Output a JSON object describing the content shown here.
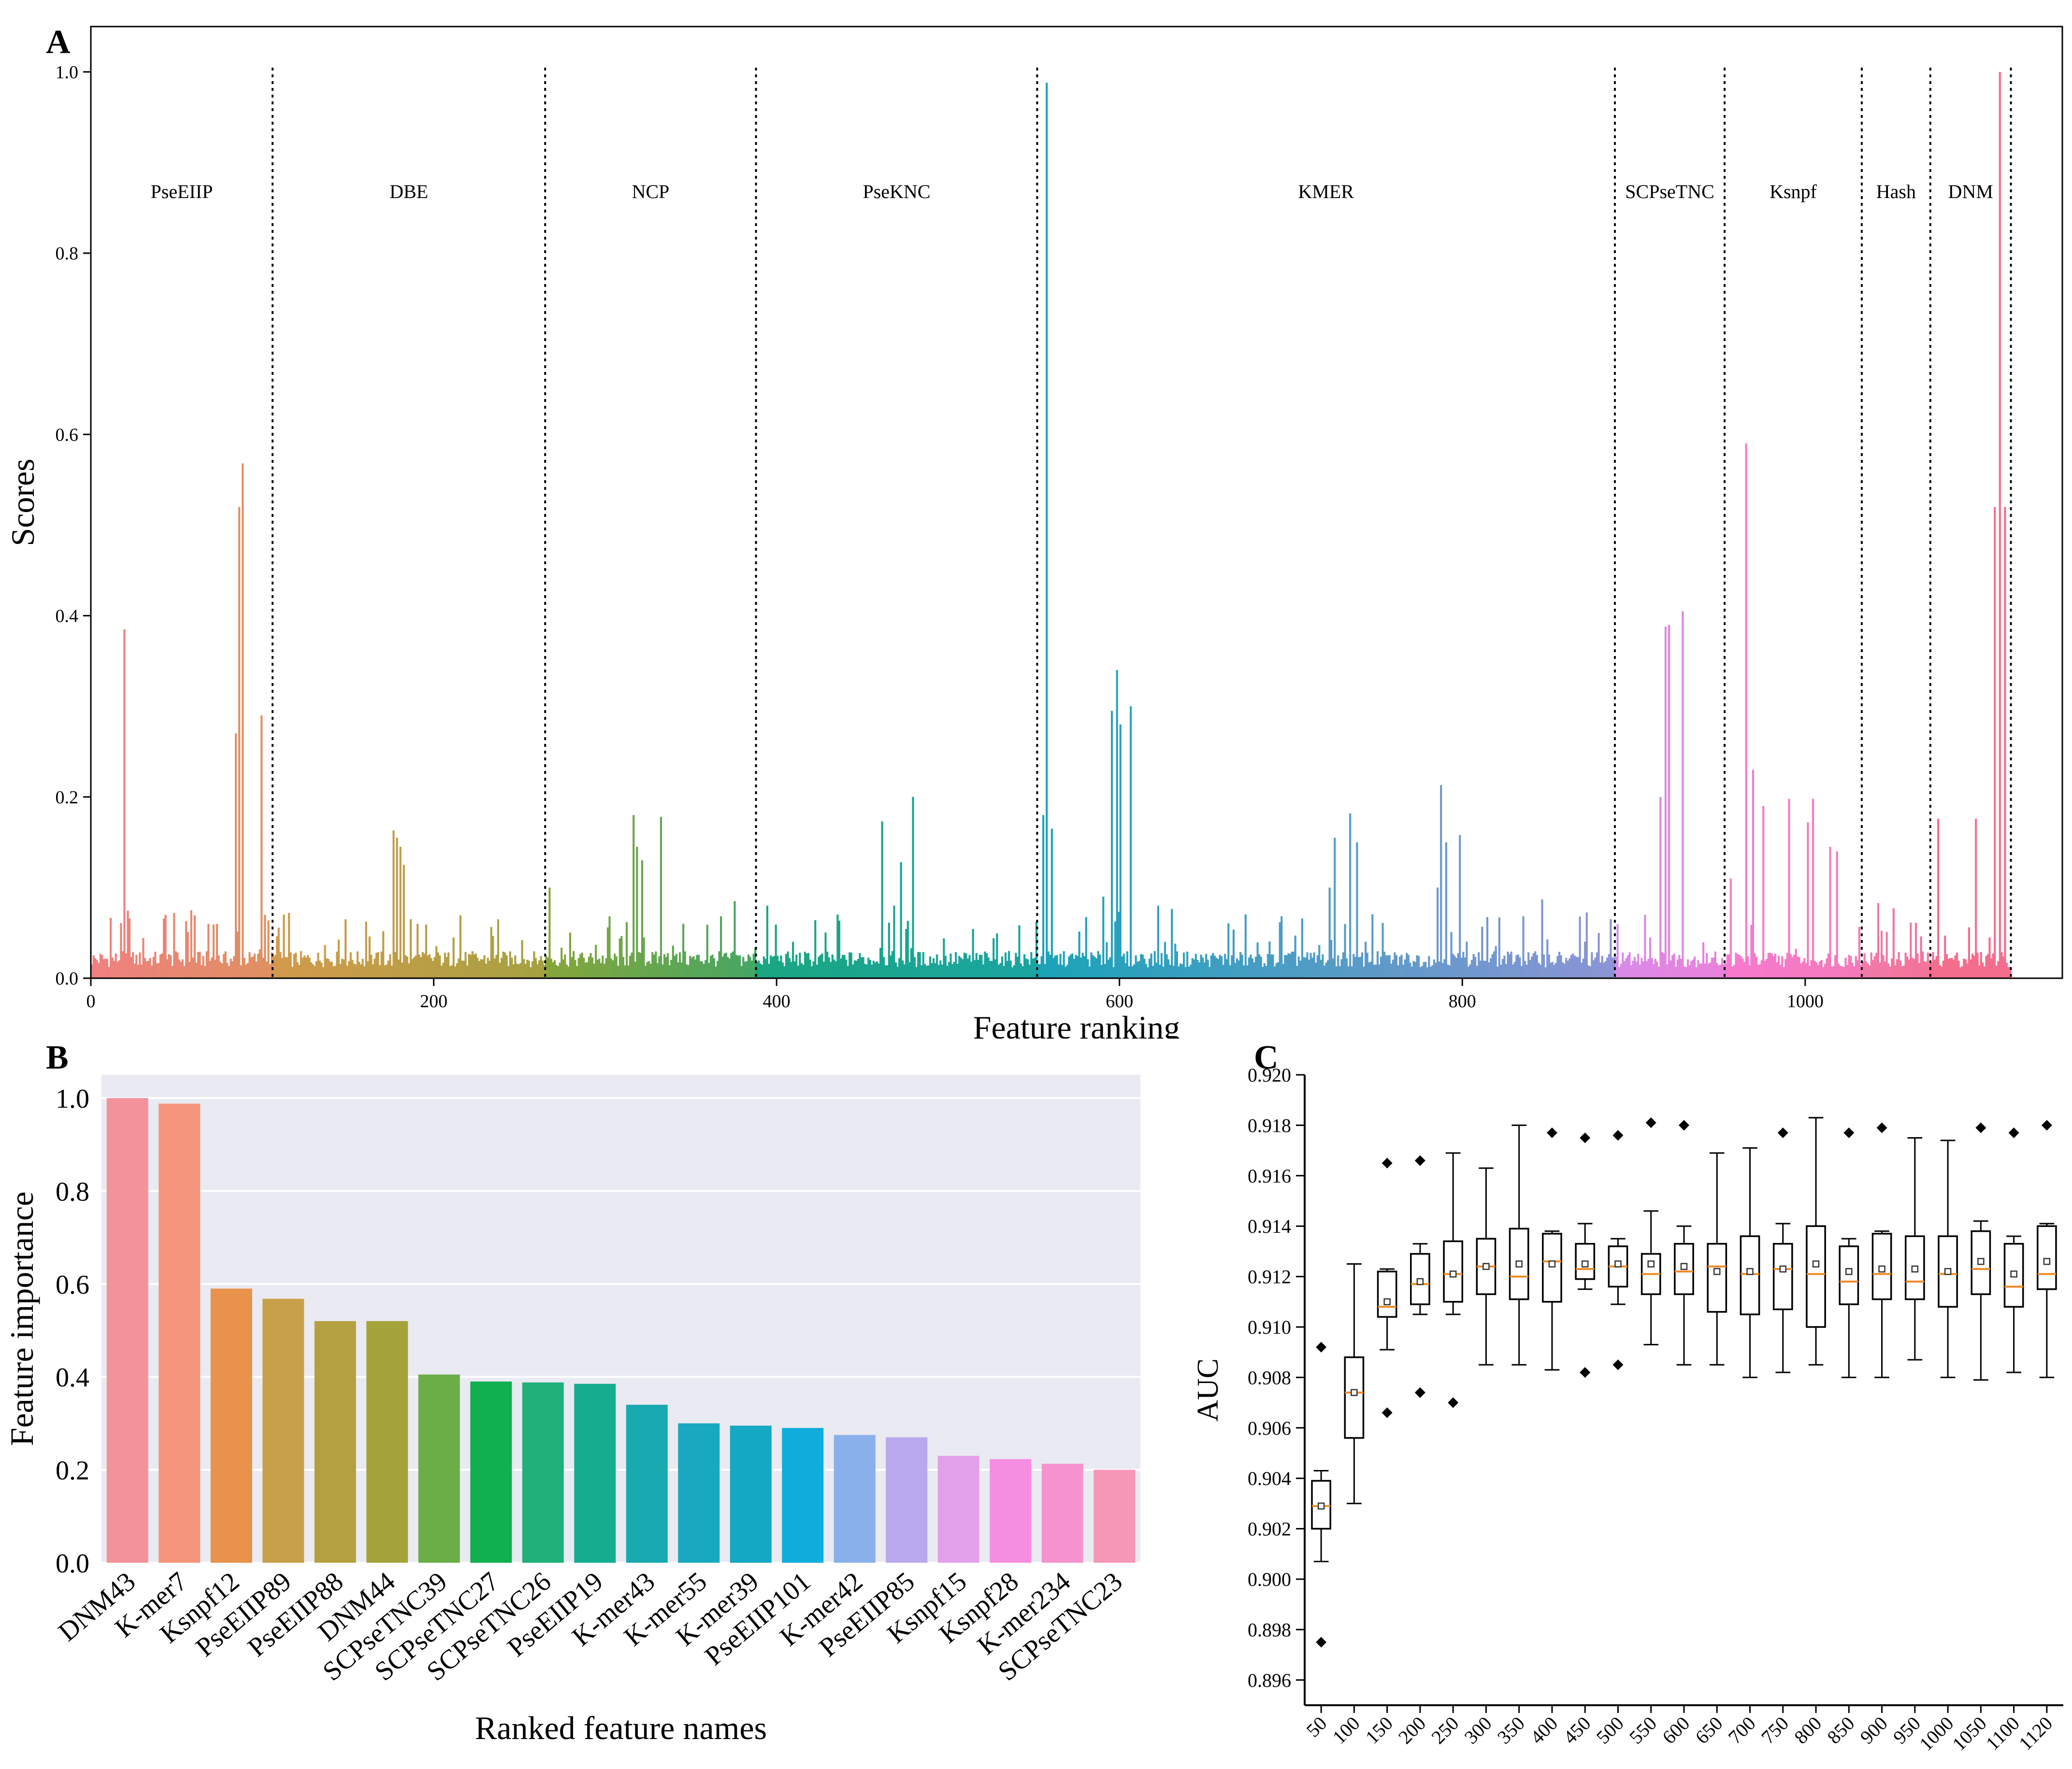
{
  "chart_data": [
    {
      "panel": "A",
      "type": "bar",
      "xlabel": "Feature ranking",
      "ylabel": "Scores",
      "xlim": [
        0,
        1150
      ],
      "ylim": [
        0,
        1.05
      ],
      "xticks": [
        0,
        200,
        400,
        600,
        800,
        1000
      ],
      "xtick_labels": [
        "0",
        "200",
        "400",
        "600",
        "800",
        "1000"
      ],
      "yticks": [
        0.0,
        0.2,
        0.4,
        0.6,
        0.8,
        1.0
      ],
      "ytick_labels": [
        "0.0",
        "0.2",
        "0.4",
        "0.6",
        "0.8",
        "1.0"
      ],
      "groups": [
        {
          "name": "PseEIIP",
          "start": 0,
          "end": 106,
          "color": "#f08080"
        },
        {
          "name": "DBE",
          "start": 106,
          "end": 265,
          "color": "#d39a4c"
        },
        {
          "name": "NCP",
          "start": 265,
          "end": 388,
          "color": "#86a63a"
        },
        {
          "name": "PseKNC",
          "start": 388,
          "end": 552,
          "color": "#1aa680"
        },
        {
          "name": "KMER",
          "start": 552,
          "end": 889,
          "color": "#1aa3b8"
        },
        {
          "name": "SCPseTNC",
          "start": 889,
          "end": 953,
          "color": "#d98ae8"
        },
        {
          "name": "Ksnpf",
          "start": 953,
          "end": 1033,
          "color": "#f57ad0"
        },
        {
          "name": "Hash",
          "start": 1033,
          "end": 1073,
          "color": "#f27aa8"
        },
        {
          "name": "DNM",
          "start": 1073,
          "end": 1120,
          "color": "#f46d8d"
        }
      ],
      "peaks": [
        {
          "x": 19,
          "y": 0.385
        },
        {
          "x": 22,
          "y": 0.066
        },
        {
          "x": 43,
          "y": 0.07
        },
        {
          "x": 48,
          "y": 0.072
        },
        {
          "x": 58,
          "y": 0.075
        },
        {
          "x": 68,
          "y": 0.06
        },
        {
          "x": 73,
          "y": 0.06
        },
        {
          "x": 84,
          "y": 0.27
        },
        {
          "x": 86,
          "y": 0.52
        },
        {
          "x": 88,
          "y": 0.568
        },
        {
          "x": 99,
          "y": 0.29
        },
        {
          "x": 101,
          "y": 0.07
        },
        {
          "x": 176,
          "y": 0.163
        },
        {
          "x": 178,
          "y": 0.155
        },
        {
          "x": 180,
          "y": 0.145
        },
        {
          "x": 182,
          "y": 0.125
        },
        {
          "x": 190,
          "y": 0.06
        },
        {
          "x": 267,
          "y": 0.1
        },
        {
          "x": 316,
          "y": 0.18
        },
        {
          "x": 318,
          "y": 0.145
        },
        {
          "x": 321,
          "y": 0.13
        },
        {
          "x": 332,
          "y": 0.178
        },
        {
          "x": 345,
          "y": 0.06
        },
        {
          "x": 375,
          "y": 0.085
        },
        {
          "x": 394,
          "y": 0.08
        },
        {
          "x": 461,
          "y": 0.173
        },
        {
          "x": 468,
          "y": 0.08
        },
        {
          "x": 472,
          "y": 0.128
        },
        {
          "x": 479,
          "y": 0.2
        },
        {
          "x": 555,
          "y": 0.18
        },
        {
          "x": 557,
          "y": 0.988
        },
        {
          "x": 560,
          "y": 0.165
        },
        {
          "x": 590,
          "y": 0.09
        },
        {
          "x": 595,
          "y": 0.295
        },
        {
          "x": 598,
          "y": 0.34
        },
        {
          "x": 600,
          "y": 0.28
        },
        {
          "x": 606,
          "y": 0.3
        },
        {
          "x": 622,
          "y": 0.08
        },
        {
          "x": 722,
          "y": 0.1
        },
        {
          "x": 725,
          "y": 0.155
        },
        {
          "x": 734,
          "y": 0.182
        },
        {
          "x": 738,
          "y": 0.15
        },
        {
          "x": 785,
          "y": 0.1
        },
        {
          "x": 787,
          "y": 0.213
        },
        {
          "x": 790,
          "y": 0.15
        },
        {
          "x": 798,
          "y": 0.158
        },
        {
          "x": 846,
          "y": 0.087
        },
        {
          "x": 906,
          "y": 0.07
        },
        {
          "x": 915,
          "y": 0.2
        },
        {
          "x": 918,
          "y": 0.388
        },
        {
          "x": 920,
          "y": 0.39
        },
        {
          "x": 928,
          "y": 0.405
        },
        {
          "x": 956,
          "y": 0.11
        },
        {
          "x": 965,
          "y": 0.59
        },
        {
          "x": 969,
          "y": 0.23
        },
        {
          "x": 975,
          "y": 0.19
        },
        {
          "x": 990,
          "y": 0.198
        },
        {
          "x": 1001,
          "y": 0.172
        },
        {
          "x": 1004,
          "y": 0.198
        },
        {
          "x": 1014,
          "y": 0.145
        },
        {
          "x": 1018,
          "y": 0.14
        },
        {
          "x": 1042,
          "y": 0.083
        },
        {
          "x": 1077,
          "y": 0.176
        },
        {
          "x": 1099,
          "y": 0.176
        },
        {
          "x": 1110,
          "y": 0.52
        },
        {
          "x": 1113,
          "y": 1.0
        },
        {
          "x": 1116,
          "y": 0.52
        }
      ]
    },
    {
      "panel": "B",
      "type": "bar",
      "xlabel": "Ranked feature names",
      "ylabel": "Feature importance",
      "ylim": [
        0,
        1.05
      ],
      "yticks": [
        0.0,
        0.2,
        0.4,
        0.6,
        0.8,
        1.0
      ],
      "ytick_labels": [
        "0.0",
        "0.2",
        "0.4",
        "0.6",
        "0.8",
        "1.0"
      ],
      "categories": [
        "DNM43",
        "K-mer7",
        "Ksnpf12",
        "PseEIIP89",
        "PseEIIP88",
        "DNM44",
        "SCPseTNC39",
        "SCPseTNC27",
        "SCPseTNC26",
        "PseEIIP19",
        "K-mer43",
        "K-mer55",
        "K-mer39",
        "PseEIIP101",
        "K-mer42",
        "PseEIIP85",
        "Ksnpf15",
        "Ksnpf28",
        "K-mer234",
        "SCPseTNC23"
      ],
      "values": [
        1.0,
        0.988,
        0.59,
        0.568,
        0.52,
        0.52,
        0.405,
        0.39,
        0.388,
        0.385,
        0.34,
        0.3,
        0.295,
        0.29,
        0.275,
        0.27,
        0.23,
        0.223,
        0.213,
        0.2
      ],
      "colors": [
        "#f4929c",
        "#f4967c",
        "#e8924c",
        "#c9a04a",
        "#b4a040",
        "#a4a43a",
        "#6aae48",
        "#10b050",
        "#20b07a",
        "#14ad8f",
        "#18aab0",
        "#18a8c0",
        "#14a8c4",
        "#10acdc",
        "#8ab0ec",
        "#baa8ec",
        "#e2a0ea",
        "#f58ee0",
        "#f693cf",
        "#f797b8"
      ],
      "plot_background": "#eaeaf2"
    },
    {
      "panel": "C",
      "type": "box",
      "ylabel": "AUC",
      "ylim": [
        0.895,
        0.92
      ],
      "yticks": [
        0.896,
        0.898,
        0.9,
        0.902,
        0.904,
        0.906,
        0.908,
        0.91,
        0.912,
        0.914,
        0.916,
        0.918,
        0.92
      ],
      "ytick_labels": [
        "0.896",
        "0.898",
        "0.900",
        "0.902",
        "0.904",
        "0.906",
        "0.908",
        "0.910",
        "0.912",
        "0.914",
        "0.916",
        "0.918",
        "0.920"
      ],
      "categories": [
        "50",
        "100",
        "150",
        "200",
        "250",
        "300",
        "350",
        "400",
        "450",
        "500",
        "550",
        "600",
        "650",
        "700",
        "750",
        "800",
        "850",
        "900",
        "950",
        "1000",
        "1050",
        "1100",
        "1120"
      ],
      "boxes": [
        {
          "q1": 0.902,
          "median": 0.9029,
          "q3": 0.9039,
          "wlo": 0.9007,
          "whi": 0.9043,
          "mean": 0.9029,
          "fliers": [
            0.9092,
            0.8975
          ]
        },
        {
          "q1": 0.9056,
          "median": 0.9074,
          "q3": 0.9088,
          "wlo": 0.903,
          "whi": 0.9125,
          "mean": 0.9074,
          "fliers": []
        },
        {
          "q1": 0.9104,
          "median": 0.9108,
          "q3": 0.9122,
          "wlo": 0.9091,
          "whi": 0.9123,
          "mean": 0.911,
          "fliers": [
            0.9165,
            0.9066
          ]
        },
        {
          "q1": 0.9109,
          "median": 0.9117,
          "q3": 0.9129,
          "wlo": 0.9105,
          "whi": 0.9133,
          "mean": 0.9118,
          "fliers": [
            0.9166,
            0.9074
          ]
        },
        {
          "q1": 0.911,
          "median": 0.9121,
          "q3": 0.9134,
          "wlo": 0.9105,
          "whi": 0.9169,
          "mean": 0.9121,
          "fliers": [
            0.907
          ]
        },
        {
          "q1": 0.9113,
          "median": 0.9124,
          "q3": 0.9135,
          "wlo": 0.9085,
          "whi": 0.9163,
          "mean": 0.9124,
          "fliers": []
        },
        {
          "q1": 0.9111,
          "median": 0.912,
          "q3": 0.9139,
          "wlo": 0.9085,
          "whi": 0.918,
          "mean": 0.9125,
          "fliers": []
        },
        {
          "q1": 0.911,
          "median": 0.9126,
          "q3": 0.9137,
          "wlo": 0.9083,
          "whi": 0.9138,
          "mean": 0.9125,
          "fliers": [
            0.9177
          ]
        },
        {
          "q1": 0.9119,
          "median": 0.9123,
          "q3": 0.9133,
          "wlo": 0.9115,
          "whi": 0.9141,
          "mean": 0.9125,
          "fliers": [
            0.9175,
            0.9082
          ]
        },
        {
          "q1": 0.9116,
          "median": 0.9124,
          "q3": 0.9132,
          "wlo": 0.9109,
          "whi": 0.9135,
          "mean": 0.9125,
          "fliers": [
            0.9176,
            0.9085
          ]
        },
        {
          "q1": 0.9113,
          "median": 0.9121,
          "q3": 0.9129,
          "wlo": 0.9093,
          "whi": 0.9146,
          "mean": 0.9125,
          "fliers": [
            0.9181
          ]
        },
        {
          "q1": 0.9113,
          "median": 0.9122,
          "q3": 0.9133,
          "wlo": 0.9085,
          "whi": 0.914,
          "mean": 0.9124,
          "fliers": [
            0.918
          ]
        },
        {
          "q1": 0.9106,
          "median": 0.9124,
          "q3": 0.9133,
          "wlo": 0.9085,
          "whi": 0.9169,
          "mean": 0.9122,
          "fliers": []
        },
        {
          "q1": 0.9105,
          "median": 0.9121,
          "q3": 0.9136,
          "wlo": 0.908,
          "whi": 0.9171,
          "mean": 0.9122,
          "fliers": []
        },
        {
          "q1": 0.9107,
          "median": 0.9123,
          "q3": 0.9133,
          "wlo": 0.9082,
          "whi": 0.9141,
          "mean": 0.9123,
          "fliers": [
            0.9177
          ]
        },
        {
          "q1": 0.91,
          "median": 0.9121,
          "q3": 0.914,
          "wlo": 0.9085,
          "whi": 0.9183,
          "mean": 0.9125,
          "fliers": []
        },
        {
          "q1": 0.9109,
          "median": 0.9118,
          "q3": 0.9132,
          "wlo": 0.908,
          "whi": 0.9135,
          "mean": 0.9122,
          "fliers": [
            0.9177
          ]
        },
        {
          "q1": 0.9111,
          "median": 0.9121,
          "q3": 0.9137,
          "wlo": 0.908,
          "whi": 0.9138,
          "mean": 0.9123,
          "fliers": [
            0.9179
          ]
        },
        {
          "q1": 0.9111,
          "median": 0.9118,
          "q3": 0.9136,
          "wlo": 0.9087,
          "whi": 0.9175,
          "mean": 0.9123,
          "fliers": []
        },
        {
          "q1": 0.9108,
          "median": 0.9121,
          "q3": 0.9136,
          "wlo": 0.908,
          "whi": 0.9174,
          "mean": 0.9122,
          "fliers": []
        },
        {
          "q1": 0.9113,
          "median": 0.9123,
          "q3": 0.9138,
          "wlo": 0.9079,
          "whi": 0.9142,
          "mean": 0.9126,
          "fliers": [
            0.9179
          ]
        },
        {
          "q1": 0.9108,
          "median": 0.9116,
          "q3": 0.9133,
          "wlo": 0.9082,
          "whi": 0.9136,
          "mean": 0.9121,
          "fliers": [
            0.9177
          ]
        },
        {
          "q1": 0.9115,
          "median": 0.9121,
          "q3": 0.914,
          "wlo": 0.908,
          "whi": 0.9141,
          "mean": 0.9126,
          "fliers": [
            0.918
          ]
        }
      ]
    }
  ],
  "panel_labels": {
    "a": "A",
    "b": "B",
    "c": "C"
  }
}
